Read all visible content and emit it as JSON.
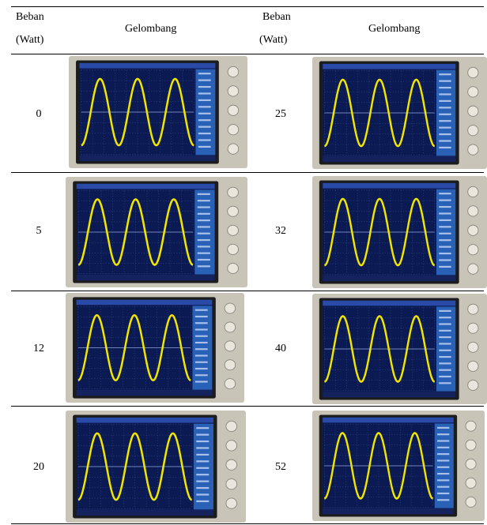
{
  "table": {
    "headers": {
      "load_line1": "Beban",
      "load_line2": "(Watt)",
      "wave": "Gelombang"
    },
    "rows": [
      {
        "left_load": "0",
        "right_load": "25"
      },
      {
        "left_load": "5",
        "right_load": "32"
      },
      {
        "left_load": "12",
        "right_load": "40"
      },
      {
        "left_load": "20",
        "right_load": "52"
      }
    ]
  },
  "scope_style": {
    "bezel_color": "#c9c4b8",
    "screen_color": "#0b1a52",
    "trace_color": "#f2e600",
    "panel_color": "#2f6fc9"
  }
}
